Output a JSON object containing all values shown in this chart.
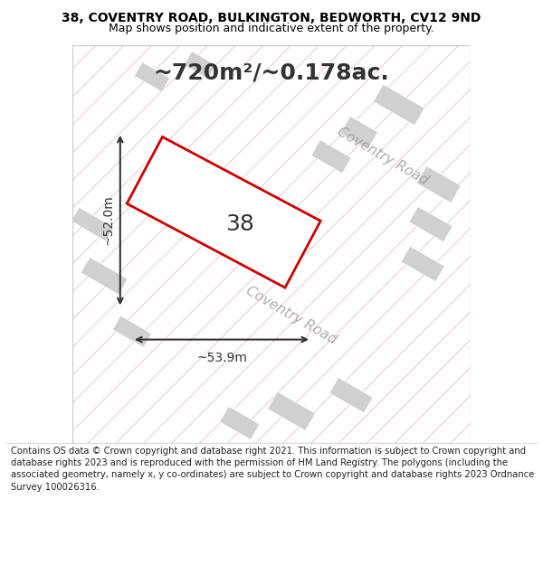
{
  "title_line1": "38, COVENTRY ROAD, BULKINGTON, BEDWORTH, CV12 9ND",
  "title_line2": "Map shows position and indicative extent of the property.",
  "area_text": "~720m²/~0.178ac.",
  "label_38": "38",
  "dim_width": "~53.9m",
  "dim_height": "~52.0m",
  "road_label1": "Coventry Road",
  "road_label2": "Coventry Road",
  "footer_text": "Contains OS data © Crown copyright and database right 2021. This information is subject to Crown copyright and database rights 2023 and is reproduced with the permission of HM Land Registry. The polygons (including the associated geometry, namely x, y co-ordinates) are subject to Crown copyright and database rights 2023 Ordnance Survey 100026316.",
  "bg_color": "#f5f5f5",
  "hatch_line_color": "#e8a0a0",
  "hatch_block_color": "#d0d0d0",
  "plot_border_color": "#cc0000",
  "dim_line_color": "#333333",
  "title_color": "#000000",
  "area_text_color": "#333333",
  "road_text_color": "#999999",
  "map_bg": "#ffffff",
  "footer_bg": "#ffffff"
}
